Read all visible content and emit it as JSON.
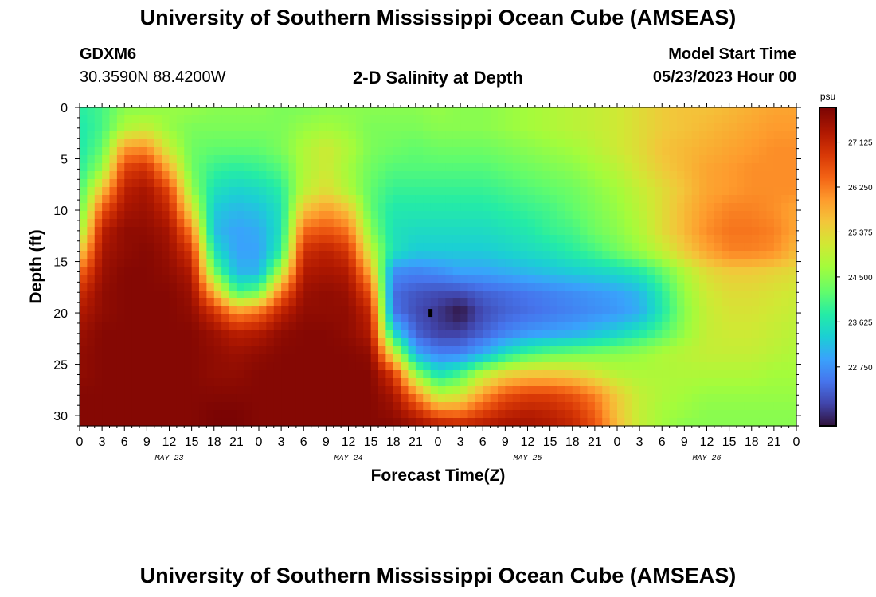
{
  "page": {
    "title_top": "University of Southern Mississippi Ocean Cube (AMSEAS)",
    "title_bottom": "University of Southern Mississippi Ocean Cube (AMSEAS)",
    "station_id": "GDXM6",
    "coords": "30.3590N  88.4200W",
    "chart_title": "2-D Salinity at Depth",
    "model_start_label": "Model Start Time",
    "model_start_value": "05/23/2023 Hour 00"
  },
  "chart_data": {
    "type": "heatmap",
    "title": "2-D Salinity at Depth",
    "xlabel": "Forecast Time(Z)",
    "ylabel": "Depth (ft)",
    "x_range_hours": [
      0,
      96
    ],
    "ylim": [
      0,
      31
    ],
    "y_inverted": true,
    "x_tick_labels": [
      "0",
      "3",
      "6",
      "9",
      "12",
      "15",
      "18",
      "21",
      "0",
      "3",
      "6",
      "9",
      "12",
      "15",
      "18",
      "21",
      "0",
      "3",
      "6",
      "9",
      "12",
      "15",
      "18",
      "21",
      "0",
      "3",
      "6",
      "9",
      "12",
      "15",
      "18",
      "21",
      "0"
    ],
    "x_tick_hours": [
      0,
      3,
      6,
      9,
      12,
      15,
      18,
      21,
      24,
      27,
      30,
      33,
      36,
      39,
      42,
      45,
      48,
      51,
      54,
      57,
      60,
      63,
      66,
      69,
      72,
      75,
      78,
      81,
      84,
      87,
      90,
      93,
      96
    ],
    "day_labels": [
      {
        "label": "MAY 23",
        "hour": 12
      },
      {
        "label": "MAY 24",
        "hour": 36
      },
      {
        "label": "MAY 25",
        "hour": 60
      },
      {
        "label": "MAY 26",
        "hour": 84
      }
    ],
    "y_ticks": [
      0,
      5,
      10,
      15,
      20,
      25,
      30
    ],
    "colorbar": {
      "unit": "psu",
      "min": 21.6,
      "max": 27.8,
      "tick_labels": [
        "27.125",
        "26.250",
        "25.375",
        "24.500",
        "23.625",
        "22.750"
      ],
      "tick_values": [
        27.125,
        26.25,
        25.375,
        24.5,
        23.625,
        22.75
      ]
    },
    "time_hours": [
      0,
      3,
      6,
      9,
      12,
      15,
      18,
      21,
      24,
      27,
      30,
      33,
      36,
      39,
      42,
      45,
      48,
      51,
      54,
      57,
      60,
      63,
      66,
      69,
      72,
      75,
      78,
      81,
      84,
      87,
      90,
      93,
      96
    ],
    "depth_ft": [
      0,
      2,
      4,
      6,
      8,
      10,
      12,
      14,
      16,
      18,
      20,
      22,
      24,
      26,
      28,
      30,
      31
    ],
    "salinity_psu": [
      [
        23.8,
        24.0,
        24.5,
        24.5,
        24.6,
        24.6,
        24.5,
        24.5,
        24.5,
        24.4,
        24.4,
        24.5,
        24.5,
        24.5,
        24.5,
        24.5,
        24.6,
        24.5,
        24.5,
        24.6,
        24.7,
        24.8,
        24.9,
        25.0,
        25.1,
        25.3,
        25.5,
        25.6,
        25.6,
        25.7,
        25.8,
        25.9,
        25.9
      ],
      [
        23.7,
        24.0,
        24.8,
        25.0,
        24.6,
        24.4,
        24.4,
        24.4,
        24.4,
        24.4,
        24.6,
        24.7,
        24.6,
        24.4,
        24.4,
        24.4,
        24.5,
        24.5,
        24.5,
        24.6,
        24.7,
        24.8,
        24.9,
        25.0,
        25.1,
        25.3,
        25.5,
        25.6,
        25.7,
        25.8,
        25.9,
        26.0,
        26.0
      ],
      [
        23.7,
        24.2,
        26.0,
        26.1,
        25.0,
        24.3,
        24.2,
        24.2,
        24.2,
        24.4,
        24.8,
        25.1,
        24.8,
        24.4,
        24.3,
        24.2,
        24.3,
        24.3,
        24.3,
        24.4,
        24.5,
        24.6,
        24.7,
        24.9,
        25.1,
        25.3,
        25.6,
        25.7,
        25.8,
        25.9,
        26.0,
        26.1,
        26.1
      ],
      [
        23.8,
        24.6,
        26.8,
        27.0,
        25.8,
        24.3,
        23.9,
        23.8,
        23.9,
        24.1,
        24.8,
        25.1,
        24.7,
        24.3,
        24.1,
        24.1,
        24.1,
        24.1,
        24.1,
        24.2,
        24.3,
        24.4,
        24.5,
        24.7,
        24.9,
        25.2,
        25.5,
        25.7,
        25.9,
        26.0,
        26.1,
        26.1,
        26.1
      ],
      [
        24.0,
        25.6,
        27.2,
        27.4,
        26.7,
        24.6,
        23.6,
        23.4,
        23.5,
        23.8,
        24.9,
        25.3,
        24.8,
        24.2,
        23.9,
        23.9,
        23.9,
        23.9,
        23.9,
        24.0,
        24.1,
        24.2,
        24.3,
        24.5,
        24.7,
        25.0,
        25.3,
        25.6,
        25.9,
        26.0,
        26.1,
        26.1,
        26.1
      ],
      [
        24.2,
        26.6,
        27.4,
        27.5,
        27.1,
        25.3,
        23.3,
        23.1,
        23.2,
        23.6,
        25.6,
        26.0,
        25.6,
        24.2,
        23.7,
        23.7,
        23.7,
        23.7,
        23.7,
        23.8,
        23.9,
        24.0,
        24.2,
        24.4,
        24.6,
        24.9,
        25.3,
        25.7,
        26.0,
        26.2,
        26.2,
        26.1,
        25.9
      ],
      [
        24.6,
        27.2,
        27.6,
        27.6,
        27.4,
        26.2,
        23.2,
        22.9,
        23.0,
        23.6,
        26.4,
        26.6,
        26.3,
        24.5,
        23.6,
        23.5,
        23.5,
        23.5,
        23.5,
        23.6,
        23.7,
        23.9,
        24.0,
        24.3,
        24.5,
        24.8,
        25.3,
        25.7,
        26.1,
        26.3,
        26.3,
        26.2,
        25.9
      ],
      [
        25.4,
        27.4,
        27.6,
        27.7,
        27.5,
        26.9,
        23.6,
        22.9,
        22.9,
        23.8,
        27.0,
        27.2,
        26.9,
        25.0,
        23.6,
        23.3,
        23.3,
        23.3,
        23.3,
        23.4,
        23.5,
        23.6,
        23.8,
        24.0,
        24.3,
        24.6,
        25.0,
        25.5,
        25.9,
        26.2,
        26.2,
        26.1,
        25.7
      ],
      [
        26.4,
        27.5,
        27.7,
        27.7,
        27.6,
        27.3,
        24.4,
        23.1,
        23.1,
        24.9,
        27.3,
        27.4,
        27.3,
        25.8,
        22.7,
        22.6,
        22.7,
        22.9,
        22.9,
        23.0,
        23.1,
        23.2,
        23.3,
        23.4,
        23.5,
        23.7,
        24.2,
        24.8,
        25.3,
        25.5,
        25.5,
        25.4,
        25.3
      ],
      [
        27.0,
        27.6,
        27.7,
        27.7,
        27.7,
        27.5,
        25.8,
        24.0,
        24.3,
        26.3,
        27.5,
        27.6,
        27.5,
        26.6,
        22.4,
        22.2,
        22.1,
        22.1,
        22.3,
        22.4,
        22.5,
        22.6,
        22.7,
        22.8,
        22.9,
        23.1,
        23.8,
        24.6,
        25.1,
        25.3,
        25.3,
        25.2,
        25.1
      ],
      [
        27.3,
        27.6,
        27.7,
        27.7,
        27.7,
        27.6,
        27.0,
        26.1,
        26.4,
        27.2,
        27.6,
        27.6,
        27.6,
        27.1,
        22.5,
        22.1,
        21.9,
        21.6,
        22.1,
        22.3,
        22.4,
        22.5,
        22.6,
        22.7,
        22.8,
        23.0,
        23.7,
        24.5,
        25.0,
        25.2,
        25.2,
        25.1,
        25.0
      ],
      [
        27.5,
        27.7,
        27.7,
        27.7,
        27.7,
        27.7,
        27.5,
        27.2,
        27.3,
        27.6,
        27.7,
        27.7,
        27.6,
        27.3,
        23.5,
        22.3,
        22.0,
        22.0,
        22.3,
        22.6,
        22.8,
        22.9,
        23.0,
        23.2,
        23.4,
        23.7,
        24.1,
        24.6,
        25.0,
        25.1,
        25.1,
        25.0,
        24.9
      ],
      [
        27.6,
        27.7,
        27.7,
        27.7,
        27.7,
        27.7,
        27.6,
        27.5,
        27.6,
        27.7,
        27.7,
        27.7,
        27.7,
        27.6,
        25.2,
        23.0,
        22.6,
        22.6,
        23.0,
        23.6,
        24.0,
        24.2,
        24.3,
        24.4,
        24.5,
        24.6,
        24.8,
        24.9,
        25.0,
        25.0,
        25.0,
        24.9,
        24.8
      ],
      [
        27.6,
        27.7,
        27.7,
        27.7,
        27.7,
        27.7,
        27.6,
        27.6,
        27.7,
        27.7,
        27.7,
        27.7,
        27.7,
        27.7,
        26.9,
        24.6,
        23.6,
        24.0,
        24.9,
        25.4,
        25.6,
        25.6,
        25.5,
        25.2,
        24.9,
        24.8,
        24.8,
        24.8,
        24.8,
        24.8,
        24.8,
        24.7,
        24.7
      ],
      [
        27.7,
        27.7,
        27.7,
        27.7,
        27.7,
        27.7,
        27.7,
        27.7,
        27.7,
        27.7,
        27.7,
        27.7,
        27.7,
        27.7,
        27.4,
        26.2,
        24.9,
        25.1,
        26.0,
        26.6,
        26.8,
        26.8,
        26.6,
        26.2,
        25.5,
        25.0,
        24.8,
        24.7,
        24.6,
        24.6,
        24.6,
        24.6,
        24.6
      ],
      [
        27.7,
        27.7,
        27.7,
        27.7,
        27.7,
        27.7,
        27.8,
        27.8,
        27.7,
        27.7,
        27.7,
        27.7,
        27.7,
        27.7,
        27.6,
        27.2,
        26.6,
        26.5,
        26.9,
        27.2,
        27.3,
        27.2,
        27.0,
        26.5,
        25.6,
        25.0,
        24.7,
        24.6,
        24.5,
        24.5,
        24.5,
        24.5,
        24.5
      ],
      [
        27.7,
        27.7,
        27.7,
        27.7,
        27.7,
        27.7,
        27.8,
        27.8,
        27.7,
        27.7,
        27.7,
        27.7,
        27.7,
        27.7,
        27.7,
        27.5,
        27.3,
        27.2,
        27.3,
        27.4,
        27.4,
        27.3,
        27.1,
        26.6,
        25.7,
        25.0,
        24.7,
        24.5,
        24.5,
        24.5,
        24.5,
        24.5,
        24.5
      ]
    ],
    "marker": {
      "hour": 47,
      "depth_ft": 20
    }
  }
}
